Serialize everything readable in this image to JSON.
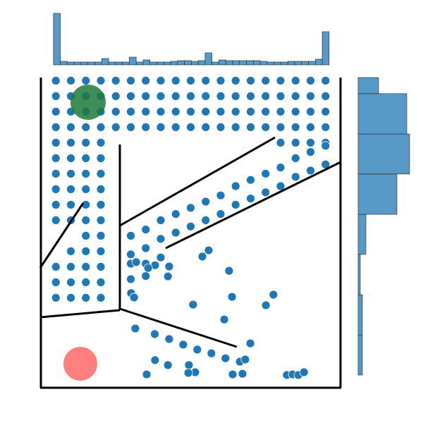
{
  "chart_data": [
    {
      "type": "scatter",
      "color": "#1f77b4",
      "xlim": [
        0,
        100
      ],
      "ylim": [
        0,
        100
      ],
      "x": [
        5,
        10,
        15,
        20,
        25,
        30,
        35,
        40,
        45,
        50,
        55,
        60,
        65,
        70,
        75,
        80,
        85,
        90,
        95,
        5,
        10,
        15,
        20,
        25,
        30,
        35,
        40,
        45,
        50,
        55,
        60,
        65,
        70,
        75,
        80,
        85,
        90,
        95,
        5,
        10,
        15,
        20,
        25,
        30,
        35,
        40,
        45,
        50,
        55,
        60,
        65,
        70,
        75,
        80,
        85,
        90,
        95,
        5,
        10,
        15,
        20,
        25,
        30,
        35,
        40,
        45,
        50,
        55,
        60,
        65,
        70,
        75,
        80,
        85,
        90,
        95,
        5,
        10,
        15,
        20,
        80,
        85,
        90,
        95,
        5,
        10,
        15,
        20,
        5,
        10,
        15,
        20,
        5,
        10,
        15,
        20,
        5,
        10,
        15,
        20,
        5,
        10,
        15,
        20,
        15,
        20,
        10,
        15,
        20,
        5,
        10,
        15,
        20,
        5,
        10,
        15,
        20,
        5,
        10,
        15,
        20,
        30,
        30,
        35,
        35,
        40,
        40,
        45,
        45,
        50,
        50,
        55,
        55,
        60,
        60,
        65,
        65,
        70,
        70,
        75,
        75,
        80,
        80,
        85,
        85,
        90,
        90,
        95,
        95,
        30,
        35,
        30,
        35,
        40,
        56.0,
        53.9,
        62.8,
        42.4,
        38.1,
        63.8,
        50.8,
        77.6,
        75.1,
        61.2,
        31.5,
        38.0,
        42.8,
        47.5,
        52.2,
        56.9,
        61.6,
        66.4,
        69.9,
        68.2,
        38.1,
        42.4,
        49.4,
        51.5,
        49.2,
        35.3,
        64.0,
        67.3,
        82.1,
        84.0,
        85.9,
        87.8,
        30.1,
        31.1,
        42.8,
        35.8,
        31.8
      ],
      "y": [
        99,
        99,
        99,
        99,
        99,
        99,
        99,
        99,
        99,
        99,
        99,
        99,
        99,
        99,
        99,
        99,
        99,
        99,
        99,
        94,
        94,
        94,
        94,
        94,
        94,
        94,
        94,
        94,
        94,
        94,
        94,
        94,
        94,
        94,
        94,
        94,
        94,
        94,
        89,
        89,
        89,
        89,
        89,
        89,
        89,
        89,
        89,
        89,
        89,
        89,
        89,
        89,
        89,
        89,
        89,
        89,
        89,
        84,
        84,
        84,
        84,
        84,
        84,
        84,
        84,
        84,
        84,
        84,
        84,
        84,
        84,
        84,
        84,
        84,
        84,
        84,
        79,
        79,
        79,
        79,
        79,
        79,
        79,
        79,
        74,
        74,
        74,
        74,
        69,
        69,
        69,
        69,
        64,
        64,
        64,
        64,
        59,
        59,
        59,
        59,
        54,
        54,
        54,
        54,
        49,
        49,
        44,
        44,
        44,
        39,
        39,
        39,
        39,
        34,
        34,
        34,
        34,
        29,
        29,
        29,
        29,
        43,
        49,
        45,
        51,
        48,
        54,
        50,
        56,
        52,
        58,
        54,
        60,
        56,
        62,
        59,
        65,
        61,
        67,
        63,
        69,
        65,
        71,
        68,
        74,
        70,
        76,
        72,
        78,
        40,
        40,
        35,
        36,
        42,
        44.3,
        42.3,
        37.7,
        35.9,
        39.5,
        29.3,
        26.8,
        30.0,
        26.6,
        22.0,
        19.1,
        17.3,
        15.7,
        13.9,
        12.3,
        11.1,
        9.5,
        8.4,
        14.3,
        9.1,
        8.9,
        7.3,
        7.3,
        5.0,
        4.8,
        4.3,
        4.3,
        4.5,
        4.1,
        4.3,
        4.1,
        5.0,
        30.5,
        29.1,
        39.1,
        38.6,
        40.5
      ]
    },
    {
      "type": "histogram",
      "orientation": "vertical",
      "color": "#5799c7",
      "bins": [
        4.2,
        6.5,
        8.8,
        11.1,
        13.4,
        15.7,
        18.0,
        20.3,
        22.6,
        24.9,
        27.2,
        29.5,
        31.8,
        34.1,
        36.4,
        38.7,
        41.0,
        43.3,
        45.6,
        47.9,
        50.2,
        52.5,
        54.8,
        57.1,
        59.4,
        61.7,
        64.0,
        66.3,
        68.6,
        70.9,
        73.2,
        75.5,
        77.8,
        80.1,
        82.4,
        84.7,
        87.0,
        89.3,
        91.6,
        93.9,
        96.2
      ],
      "values": [
        73,
        5,
        4,
        4,
        4,
        4,
        4,
        9,
        4,
        4,
        4,
        11,
        4,
        7,
        4,
        4,
        4,
        5,
        6,
        6,
        5,
        6,
        17,
        4,
        7,
        6,
        6,
        6,
        6,
        6,
        5,
        4,
        4,
        4,
        5,
        5,
        5,
        5,
        8,
        47
      ]
    },
    {
      "type": "histogram",
      "orientation": "horizontal",
      "color": "#5799c7",
      "bins": [
        4.1,
        17.0,
        30.0,
        43.0,
        55.9,
        68.9,
        81.8,
        94.8,
        107.7
      ],
      "values": [
        6,
        6,
        3,
        11,
        55,
        73,
        69,
        29
      ]
    }
  ]
}
